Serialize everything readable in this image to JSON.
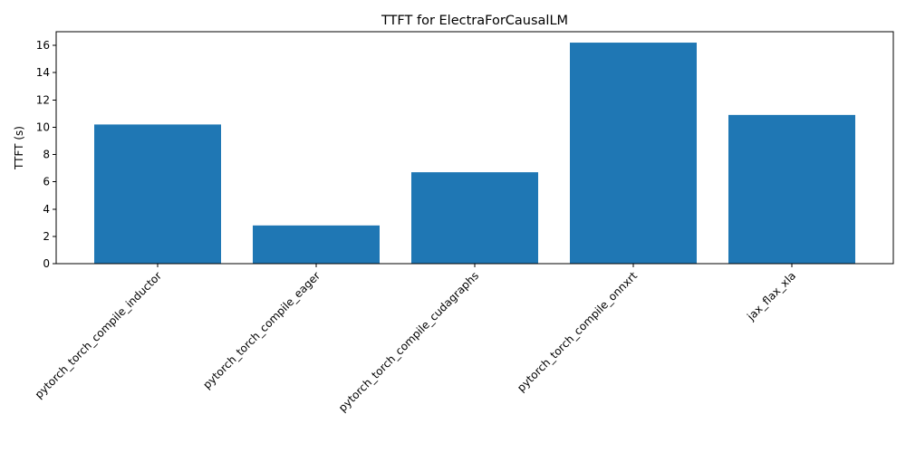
{
  "chart_data": {
    "type": "bar",
    "title": "TTFT for ElectraForCausalLM",
    "xlabel": "",
    "ylabel": "TTFT (s)",
    "categories": [
      "pytorch_torch_compile_inductor",
      "pytorch_torch_compile_eager",
      "pytorch_torch_compile_cudagraphs",
      "pytorch_torch_compile_onnxrt",
      "jax_flax_xla"
    ],
    "values": [
      10.2,
      2.8,
      6.7,
      16.2,
      10.9
    ],
    "ylim": [
      0,
      17
    ],
    "yticks": [
      0,
      2,
      4,
      6,
      8,
      10,
      12,
      14,
      16
    ],
    "bar_color": "#1f77b4",
    "grid": false,
    "legend": "none",
    "xtick_rotation_deg": 45
  }
}
